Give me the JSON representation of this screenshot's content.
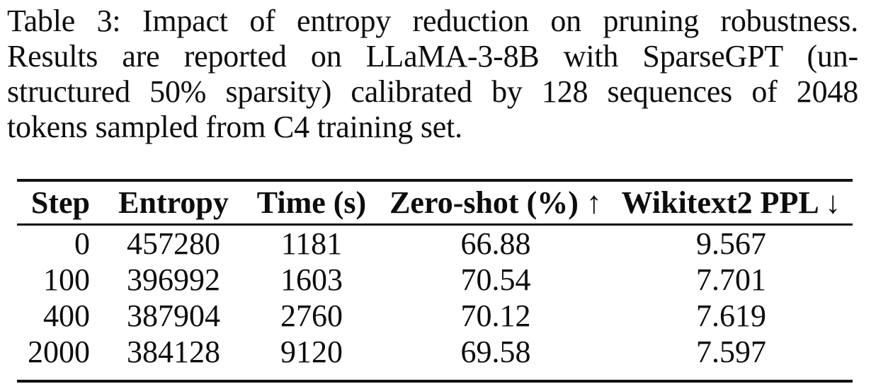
{
  "caption": {
    "lines": [
      "Table 3: Impact of entropy reduction on pruning robustness.",
      "Results are reported on LLaMA-3-8B with SparseGPT (un-",
      "structured 50% sparsity) calibrated by 128 sequences of 2048",
      "tokens sampled from C4 training set."
    ]
  },
  "table": {
    "columns": [
      "Step",
      "Entropy",
      "Time (s)",
      "Zero-shot (%) ↑",
      "Wikitext2 PPL ↓"
    ],
    "rows": [
      [
        "0",
        "457280",
        "1181",
        "66.88",
        "9.567"
      ],
      [
        "100",
        "396992",
        "1603",
        "70.54",
        "7.701"
      ],
      [
        "400",
        "387904",
        "2760",
        "70.12",
        "7.619"
      ],
      [
        "2000",
        "384128",
        "9120",
        "69.58",
        "7.597"
      ]
    ]
  },
  "colors": {
    "background": "#ffffff",
    "text": "#0d0d0d",
    "rule": "#111111"
  }
}
